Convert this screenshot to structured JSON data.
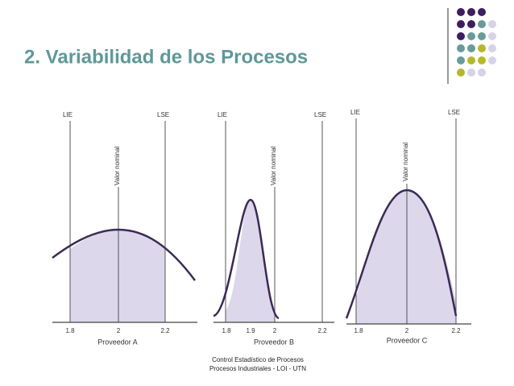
{
  "header": {
    "title": "2. Variabilidad de los Procesos"
  },
  "panels": [
    {
      "lie": "LIE",
      "lse": "LSE",
      "nominal": "Valor nominal",
      "ticks": [
        "1.8",
        "2",
        "2.2"
      ],
      "label": "Proveedor A"
    },
    {
      "lie": "LIE",
      "lse": "LSE",
      "nominal": "Valor nominal",
      "ticks": [
        "1.8",
        "1.9",
        "2",
        "2.2"
      ],
      "label": "Proveedor B"
    },
    {
      "lie": "LIE",
      "lse": "LSE",
      "nominal": "Valor nominal",
      "ticks": [
        "1.8",
        "2",
        "2.2"
      ],
      "label": "Proveedor C"
    }
  ],
  "footer": {
    "lines": [
      "Control Estadístico de Procesos",
      "Procesos Industriales - LOI - UTN"
    ]
  }
}
